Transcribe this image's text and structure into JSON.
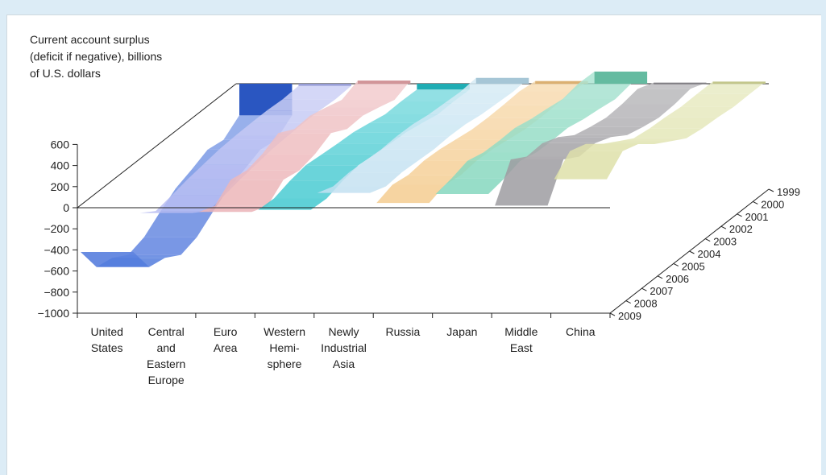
{
  "chart_data": {
    "type": "area",
    "title": "",
    "ylabel_lines": [
      "Current account surplus",
      "(deficit if negative), billions",
      "of U.S. dollars"
    ],
    "ylim": [
      -1000,
      600
    ],
    "yticks": [
      600,
      400,
      200,
      0,
      -200,
      -400,
      -600,
      -800,
      -1000
    ],
    "ytick_labels": [
      "600",
      "400",
      "200",
      "0",
      "−200",
      "−400",
      "−600",
      "−800",
      "−1000"
    ],
    "categories": [
      {
        "label": [
          "United",
          "States"
        ],
        "color": "#2f5fd6",
        "values": [
          -300,
          -415,
          -390,
          -460,
          -520,
          -630,
          -750,
          -800,
          -710,
          -680,
          -420
        ]
      },
      {
        "label": [
          "Central",
          "and",
          "Eastern",
          "Europe"
        ],
        "color": "#a8aeef",
        "values": [
          -20,
          -30,
          -20,
          -20,
          -25,
          -35,
          -60,
          -85,
          -120,
          -150,
          -50
        ]
      },
      {
        "label": [
          "Euro",
          "Area"
        ],
        "color": "#e8a6aa",
        "values": [
          30,
          -35,
          10,
          50,
          40,
          120,
          40,
          0,
          30,
          -100,
          -40
        ]
      },
      {
        "label": [
          "Western",
          "Hemi-",
          "sphere"
        ],
        "color": "#22c0c8",
        "values": [
          -55,
          -50,
          -55,
          -20,
          10,
          20,
          35,
          50,
          20,
          -30,
          -20
        ]
      },
      {
        "label": [
          "Newly",
          "Industrial",
          "Asia"
        ],
        "color": "#b8dcee",
        "values": [
          55,
          40,
          50,
          60,
          85,
          90,
          80,
          90,
          100,
          85,
          140
        ]
      },
      {
        "label": [
          "Russia"
        ],
        "color": "#f3c47e",
        "values": [
          25,
          45,
          35,
          30,
          35,
          60,
          85,
          95,
          75,
          100,
          45
        ]
      },
      {
        "label": [
          "Japan"
        ],
        "color": "#6fd0b2",
        "values": [
          115,
          120,
          90,
          115,
          135,
          170,
          165,
          170,
          210,
          160,
          130
        ]
      },
      {
        "label": [
          "Middle",
          "East"
        ],
        "color": "#8d8b90",
        "values": [
          10,
          70,
          40,
          30,
          60,
          100,
          200,
          260,
          250,
          340,
          20
        ]
      },
      {
        "label": [
          "China"
        ],
        "color": "#d8dc9a",
        "values": [
          20,
          20,
          17,
          35,
          45,
          70,
          160,
          250,
          370,
          420,
          270
        ]
      }
    ],
    "years": [
      "1999",
      "2000",
      "2001",
      "2002",
      "2003",
      "2004",
      "2005",
      "2006",
      "2007",
      "2008",
      "2009"
    ]
  }
}
